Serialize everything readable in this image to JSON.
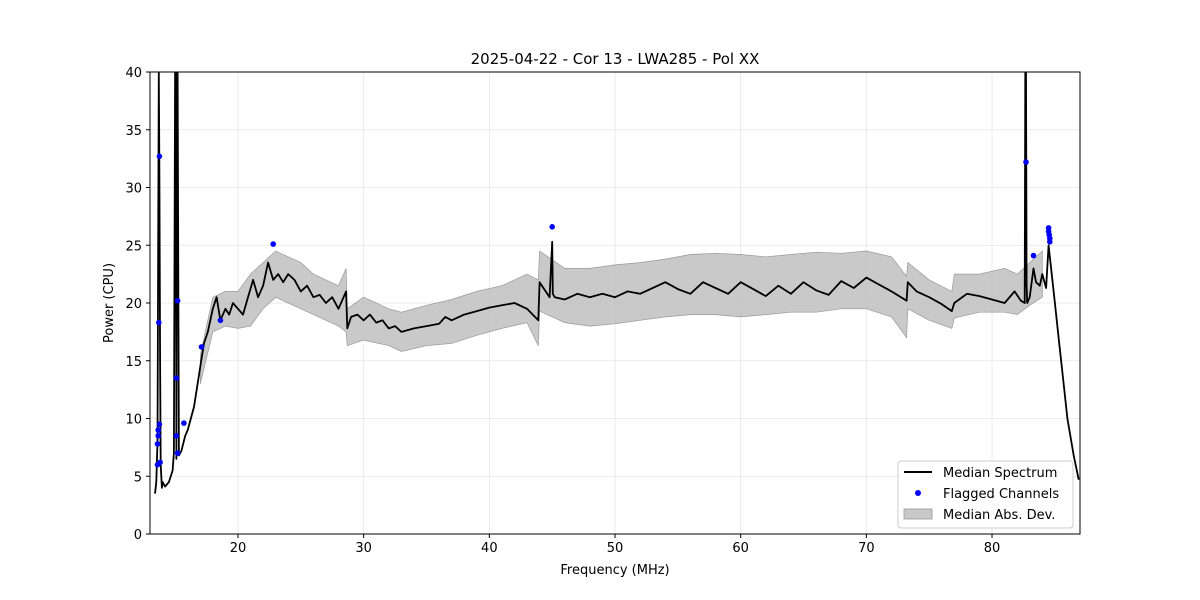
{
  "chart_data": {
    "type": "line",
    "title": "2025-04-22 - Cor 13 - LWA285 - Pol XX",
    "xlabel": "Frequency (MHz)",
    "ylabel": "Power (CPU)",
    "xlim": [
      13.0,
      87.0
    ],
    "ylim": [
      0,
      40
    ],
    "xticks": [
      20,
      30,
      40,
      50,
      60,
      70,
      80
    ],
    "yticks": [
      0,
      5,
      10,
      15,
      20,
      25,
      30,
      35,
      40
    ],
    "grid": true,
    "legend_position": "lower-right",
    "colors": {
      "median": "#000000",
      "flagged": "#0000ff",
      "mad": "#bbbbbb",
      "grid": "#e5e5e5"
    },
    "legend": [
      "Median Spectrum",
      "Flagged Channels",
      "Median Abs. Dev."
    ],
    "series": [
      {
        "name": "Median Spectrum",
        "style": "line",
        "x": [
          13.4,
          13.5,
          13.6,
          13.7,
          13.75,
          13.8,
          13.85,
          13.9,
          13.95,
          14.0,
          14.2,
          14.5,
          14.8,
          14.9,
          15.0,
          15.05,
          15.1,
          15.15,
          15.2,
          15.3,
          15.5,
          15.8,
          16.0,
          16.5,
          17.0,
          17.3,
          17.6,
          18.0,
          18.3,
          18.6,
          19.0,
          19.3,
          19.6,
          20.0,
          20.4,
          20.8,
          21.2,
          21.6,
          22.0,
          22.4,
          22.8,
          23.2,
          23.6,
          24.0,
          24.5,
          25.0,
          25.5,
          26.0,
          26.5,
          27.0,
          27.5,
          28.0,
          28.6,
          28.7,
          29.0,
          29.5,
          30.0,
          30.5,
          31.0,
          31.5,
          32.0,
          32.5,
          33.0,
          34.0,
          35.0,
          36.0,
          36.5,
          37.0,
          38.0,
          39.0,
          40.0,
          41.0,
          42.0,
          43.0,
          43.9,
          44.0,
          44.8,
          45.0,
          45.05,
          45.2,
          46.0,
          47.0,
          48.0,
          49.0,
          50.0,
          51.0,
          52.0,
          53.0,
          54.0,
          55.0,
          56.0,
          57.0,
          58.0,
          59.0,
          60.0,
          61.0,
          62.0,
          63.0,
          64.0,
          65.0,
          66.0,
          67.0,
          68.0,
          69.0,
          70.0,
          71.0,
          72.0,
          73.2,
          73.3,
          74.0,
          75.0,
          76.0,
          76.8,
          77.0,
          78.0,
          79.0,
          80.0,
          81.0,
          81.8,
          82.3,
          82.6,
          82.65,
          82.7,
          82.75,
          82.8,
          83.0,
          83.3,
          83.5,
          83.8,
          84.0,
          84.3,
          84.5,
          84.7,
          85.0,
          85.3,
          85.6,
          86.0,
          86.5,
          86.9
        ],
        "y": [
          3.5,
          4.5,
          8.0,
          40.0,
          31.0,
          15.0,
          6.0,
          5.0,
          4.0,
          4.5,
          4.1,
          4.5,
          5.5,
          7.0,
          40.0,
          40.0,
          6.5,
          40.0,
          40.0,
          6.8,
          7.2,
          8.5,
          9.0,
          11.0,
          14.5,
          16.5,
          17.5,
          19.5,
          20.5,
          18.5,
          19.5,
          19.0,
          20.0,
          19.5,
          19.0,
          20.5,
          22.0,
          20.5,
          21.5,
          23.5,
          22.0,
          22.5,
          21.8,
          22.5,
          22.0,
          21.0,
          21.5,
          20.5,
          20.7,
          20.0,
          20.5,
          19.5,
          21.0,
          17.8,
          18.8,
          19.0,
          18.5,
          19.0,
          18.3,
          18.5,
          17.8,
          18.0,
          17.5,
          17.8,
          18.0,
          18.2,
          18.8,
          18.5,
          19.0,
          19.3,
          19.6,
          19.8,
          20.0,
          19.5,
          18.5,
          21.8,
          20.5,
          25.3,
          20.8,
          20.5,
          20.3,
          20.8,
          20.5,
          20.8,
          20.5,
          21.0,
          20.8,
          21.3,
          21.8,
          21.2,
          20.8,
          21.8,
          21.3,
          20.8,
          21.8,
          21.2,
          20.6,
          21.5,
          20.8,
          21.8,
          21.1,
          20.7,
          21.9,
          21.3,
          22.2,
          21.6,
          21.0,
          20.2,
          21.8,
          21.0,
          20.5,
          19.9,
          19.3,
          20.0,
          20.8,
          20.6,
          20.3,
          20.0,
          21.0,
          20.2,
          20.0,
          40.0,
          40.0,
          21.5,
          20.0,
          20.5,
          23.0,
          21.8,
          21.5,
          22.5,
          21.3,
          25.0,
          23.0,
          20.0,
          17.0,
          14.0,
          10.0,
          6.8,
          4.7
        ]
      },
      {
        "name": "Flagged Channels",
        "style": "points",
        "x": [
          13.6,
          13.6,
          13.65,
          13.65,
          13.7,
          13.75,
          13.75,
          13.8,
          15.1,
          15.1,
          15.2,
          15.2,
          15.7,
          17.1,
          18.6,
          22.8,
          45.0,
          82.7,
          83.3,
          84.5,
          84.5,
          84.55,
          84.6,
          84.6
        ],
        "y": [
          6.0,
          7.8,
          8.5,
          9.0,
          18.3,
          32.7,
          9.5,
          6.2,
          13.5,
          8.5,
          20.2,
          7.0,
          9.6,
          16.2,
          18.5,
          25.1,
          26.6,
          32.2,
          24.1,
          26.5,
          26.2,
          25.9,
          25.6,
          25.3
        ]
      },
      {
        "name": "Median Abs. Dev.",
        "style": "band",
        "x": [
          17.0,
          18.0,
          19.0,
          20.0,
          21.0,
          22.0,
          23.0,
          24.0,
          25.0,
          26.0,
          27.0,
          28.0,
          28.6,
          28.7,
          30.0,
          32.0,
          33.0,
          35.0,
          37.0,
          39.0,
          41.0,
          43.0,
          43.9,
          44.0,
          46.0,
          48.0,
          50.0,
          52.0,
          54.0,
          56.0,
          58.0,
          60.0,
          62.0,
          64.0,
          66.0,
          68.0,
          70.0,
          72.0,
          73.2,
          73.3,
          75.0,
          76.8,
          77.0,
          79.0,
          81.0,
          82.0,
          83.0,
          84.0
        ],
        "lower": [
          13.0,
          17.5,
          18.0,
          17.8,
          18.0,
          19.5,
          20.5,
          20.0,
          19.5,
          19.0,
          18.5,
          18.0,
          17.5,
          16.3,
          16.8,
          16.3,
          15.8,
          16.3,
          16.5,
          17.2,
          17.8,
          18.3,
          16.3,
          19.3,
          18.3,
          18.0,
          18.2,
          18.5,
          18.8,
          19.0,
          19.0,
          18.8,
          19.0,
          19.2,
          19.2,
          19.5,
          19.5,
          18.8,
          17.0,
          19.5,
          18.5,
          17.8,
          18.7,
          19.2,
          19.2,
          19.0,
          19.8,
          20.5
        ],
        "upper": [
          15.5,
          20.5,
          21.0,
          21.0,
          22.5,
          23.5,
          24.5,
          24.0,
          23.5,
          22.5,
          22.0,
          21.5,
          23.0,
          19.5,
          20.5,
          19.5,
          19.2,
          19.8,
          20.3,
          21.0,
          21.5,
          22.5,
          22.0,
          24.5,
          23.0,
          23.0,
          23.3,
          23.5,
          23.8,
          24.2,
          24.3,
          24.2,
          24.0,
          24.2,
          24.4,
          24.3,
          24.5,
          24.0,
          22.3,
          23.5,
          22.0,
          21.0,
          22.5,
          22.5,
          23.0,
          22.5,
          23.5,
          24.5
        ]
      }
    ]
  }
}
